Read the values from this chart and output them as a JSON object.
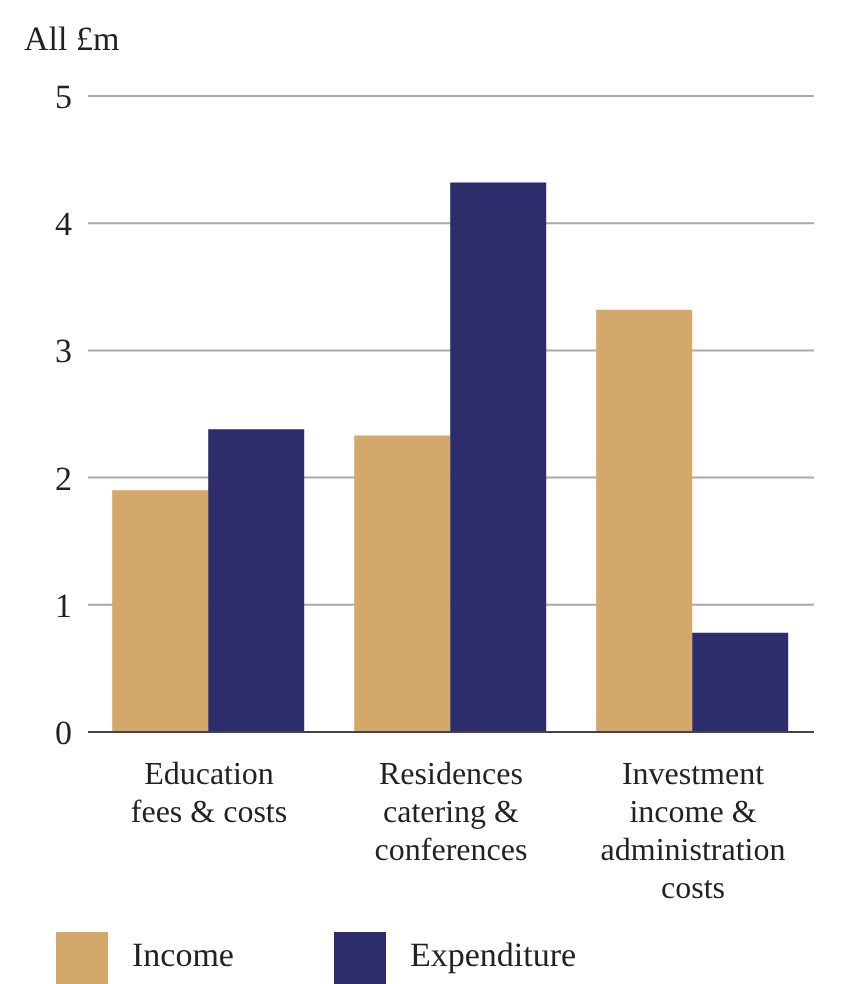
{
  "chart_data": {
    "type": "bar",
    "ylabel": "All £m",
    "categories": [
      "Education fees & costs",
      "Residences catering & conferences",
      "Investment income & administration costs"
    ],
    "series": [
      {
        "name": "Income",
        "color": "#d4a76a",
        "values": [
          1.9,
          2.33,
          3.32
        ]
      },
      {
        "name": "Expenditure",
        "color": "#2e2d6b",
        "values": [
          2.38,
          4.32,
          0.78
        ]
      }
    ],
    "ylim": [
      0,
      5
    ],
    "yticks": [
      0,
      1,
      2,
      3,
      4,
      5
    ],
    "grid": "y",
    "legend": "bottom"
  }
}
